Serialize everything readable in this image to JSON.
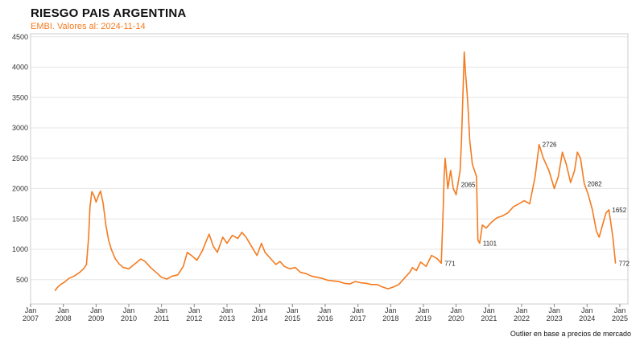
{
  "title": "RIESGO PAIS ARGENTINA",
  "subtitle": "EMBI. Valores al: 2024-11-14",
  "footnote": "Outlier en base a precios de mercado",
  "colors": {
    "line": "#f47b20",
    "subtitle": "#f47b20",
    "grid": "#e6e6e6",
    "axis": "#cccccc",
    "text": "#333333"
  },
  "chart_data": {
    "type": "line",
    "title": "RIESGO PAIS ARGENTINA",
    "subtitle": "EMBI. Valores al: 2024-11-14",
    "xlim": [
      "2007-01-01",
      "2025-04-01"
    ],
    "ylim": [
      100,
      4550
    ],
    "yticks": [
      500,
      1000,
      1500,
      2000,
      2500,
      3000,
      3500,
      4000,
      4500
    ],
    "xticks": [
      {
        "date": "2007-01-01",
        "label": [
          "Jan",
          "2007"
        ]
      },
      {
        "date": "2008-01-01",
        "label": [
          "Jan",
          "2008"
        ]
      },
      {
        "date": "2009-01-01",
        "label": [
          "Jan",
          "2009"
        ]
      },
      {
        "date": "2010-01-01",
        "label": [
          "Jan",
          "2010"
        ]
      },
      {
        "date": "2011-01-01",
        "label": [
          "Jan",
          "2011"
        ]
      },
      {
        "date": "2012-01-01",
        "label": [
          "Jan",
          "2012"
        ]
      },
      {
        "date": "2013-01-01",
        "label": [
          "Jan",
          "2013"
        ]
      },
      {
        "date": "2014-01-01",
        "label": [
          "Jan",
          "2014"
        ]
      },
      {
        "date": "2015-01-01",
        "label": [
          "Jan",
          "2015"
        ]
      },
      {
        "date": "2016-01-01",
        "label": [
          "Jan",
          "2016"
        ]
      },
      {
        "date": "2017-01-01",
        "label": [
          "Jan",
          "2017"
        ]
      },
      {
        "date": "2018-01-01",
        "label": [
          "Jan",
          "2018"
        ]
      },
      {
        "date": "2019-01-01",
        "label": [
          "Jan",
          "2019"
        ]
      },
      {
        "date": "2020-01-01",
        "label": [
          "Jan",
          "2020"
        ]
      },
      {
        "date": "2021-01-01",
        "label": [
          "Jan",
          "2021"
        ]
      },
      {
        "date": "2022-01-01",
        "label": [
          "Jan",
          "2022"
        ]
      },
      {
        "date": "2023-01-01",
        "label": [
          "Jan",
          "2023"
        ]
      },
      {
        "date": "2024-01-01",
        "label": [
          "Jan",
          "2024"
        ]
      },
      {
        "date": "2025-01-01",
        "label": [
          "Jan",
          "2025"
        ]
      }
    ],
    "grid": true,
    "legend": "none",
    "series": [
      {
        "points": [
          [
            "2007-10-01",
            320
          ],
          [
            "2007-11-01",
            380
          ],
          [
            "2007-12-01",
            420
          ],
          [
            "2008-01-15",
            460
          ],
          [
            "2008-03-01",
            520
          ],
          [
            "2008-05-01",
            560
          ],
          [
            "2008-07-01",
            620
          ],
          [
            "2008-08-15",
            680
          ],
          [
            "2008-09-15",
            750
          ],
          [
            "2008-10-10",
            1200
          ],
          [
            "2008-10-25",
            1700
          ],
          [
            "2008-11-15",
            1950
          ],
          [
            "2008-12-10",
            1880
          ],
          [
            "2009-01-01",
            1780
          ],
          [
            "2009-02-01",
            1900
          ],
          [
            "2009-02-20",
            1960
          ],
          [
            "2009-03-20",
            1760
          ],
          [
            "2009-04-20",
            1400
          ],
          [
            "2009-05-20",
            1150
          ],
          [
            "2009-06-20",
            1000
          ],
          [
            "2009-08-01",
            850
          ],
          [
            "2009-09-15",
            760
          ],
          [
            "2009-11-01",
            700
          ],
          [
            "2010-01-01",
            680
          ],
          [
            "2010-03-01",
            750
          ],
          [
            "2010-05-15",
            840
          ],
          [
            "2010-07-01",
            800
          ],
          [
            "2010-09-01",
            700
          ],
          [
            "2010-11-01",
            620
          ],
          [
            "2011-01-01",
            540
          ],
          [
            "2011-03-01",
            510
          ],
          [
            "2011-05-01",
            560
          ],
          [
            "2011-07-01",
            580
          ],
          [
            "2011-09-01",
            720
          ],
          [
            "2011-10-15",
            950
          ],
          [
            "2011-12-01",
            900
          ],
          [
            "2012-02-01",
            820
          ],
          [
            "2012-04-01",
            980
          ],
          [
            "2012-05-15",
            1140
          ],
          [
            "2012-06-15",
            1250
          ],
          [
            "2012-08-01",
            1050
          ],
          [
            "2012-09-15",
            950
          ],
          [
            "2012-11-15",
            1200
          ],
          [
            "2013-01-01",
            1100
          ],
          [
            "2013-03-01",
            1230
          ],
          [
            "2013-05-01",
            1180
          ],
          [
            "2013-06-15",
            1280
          ],
          [
            "2013-08-01",
            1200
          ],
          [
            "2013-10-01",
            1050
          ],
          [
            "2013-12-01",
            900
          ],
          [
            "2014-01-20",
            1100
          ],
          [
            "2014-03-01",
            950
          ],
          [
            "2014-05-01",
            850
          ],
          [
            "2014-07-01",
            750
          ],
          [
            "2014-08-15",
            800
          ],
          [
            "2014-10-01",
            720
          ],
          [
            "2014-12-01",
            680
          ],
          [
            "2015-02-01",
            700
          ],
          [
            "2015-04-01",
            620
          ],
          [
            "2015-06-01",
            600
          ],
          [
            "2015-08-01",
            560
          ],
          [
            "2015-10-01",
            540
          ],
          [
            "2015-12-01",
            520
          ],
          [
            "2016-02-01",
            490
          ],
          [
            "2016-04-01",
            480
          ],
          [
            "2016-06-01",
            470
          ],
          [
            "2016-08-01",
            440
          ],
          [
            "2016-10-01",
            430
          ],
          [
            "2016-12-01",
            470
          ],
          [
            "2017-02-01",
            450
          ],
          [
            "2017-04-01",
            440
          ],
          [
            "2017-06-01",
            420
          ],
          [
            "2017-08-01",
            420
          ],
          [
            "2017-10-01",
            380
          ],
          [
            "2017-12-01",
            350
          ],
          [
            "2018-02-01",
            380
          ],
          [
            "2018-04-01",
            420
          ],
          [
            "2018-06-01",
            520
          ],
          [
            "2018-08-01",
            620
          ],
          [
            "2018-09-01",
            700
          ],
          [
            "2018-10-15",
            650
          ],
          [
            "2018-12-01",
            790
          ],
          [
            "2019-02-01",
            720
          ],
          [
            "2019-04-01",
            900
          ],
          [
            "2019-06-01",
            850
          ],
          [
            "2019-07-20",
            771
          ],
          [
            "2019-08-13",
            1800
          ],
          [
            "2019-08-20",
            2200
          ],
          [
            "2019-09-01",
            2500
          ],
          [
            "2019-10-01",
            2000
          ],
          [
            "2019-11-01",
            2300
          ],
          [
            "2019-12-01",
            2000
          ],
          [
            "2020-01-01",
            1900
          ],
          [
            "2020-01-20",
            2065
          ],
          [
            "2020-02-15",
            2300
          ],
          [
            "2020-03-01",
            2800
          ],
          [
            "2020-03-20",
            3700
          ],
          [
            "2020-04-01",
            4250
          ],
          [
            "2020-04-15",
            3900
          ],
          [
            "2020-05-01",
            3600
          ],
          [
            "2020-05-15",
            3300
          ],
          [
            "2020-06-01",
            2800
          ],
          [
            "2020-07-01",
            2400
          ],
          [
            "2020-08-15",
            2200
          ],
          [
            "2020-09-01",
            1150
          ],
          [
            "2020-09-20",
            1101
          ],
          [
            "2020-10-20",
            1400
          ],
          [
            "2020-12-01",
            1350
          ],
          [
            "2021-02-01",
            1450
          ],
          [
            "2021-04-01",
            1520
          ],
          [
            "2021-06-01",
            1550
          ],
          [
            "2021-08-01",
            1600
          ],
          [
            "2021-10-01",
            1700
          ],
          [
            "2021-12-01",
            1750
          ],
          [
            "2022-02-01",
            1800
          ],
          [
            "2022-04-01",
            1750
          ],
          [
            "2022-06-01",
            2200
          ],
          [
            "2022-07-15",
            2726
          ],
          [
            "2022-09-01",
            2500
          ],
          [
            "2022-11-01",
            2300
          ],
          [
            "2023-01-01",
            2000
          ],
          [
            "2023-02-15",
            2200
          ],
          [
            "2023-04-01",
            2600
          ],
          [
            "2023-05-15",
            2400
          ],
          [
            "2023-07-01",
            2100
          ],
          [
            "2023-08-15",
            2300
          ],
          [
            "2023-09-15",
            2600
          ],
          [
            "2023-10-20",
            2500
          ],
          [
            "2023-12-01",
            2082
          ],
          [
            "2024-01-15",
            1900
          ],
          [
            "2024-03-01",
            1650
          ],
          [
            "2024-04-15",
            1300
          ],
          [
            "2024-05-15",
            1200
          ],
          [
            "2024-07-01",
            1450
          ],
          [
            "2024-08-01",
            1600
          ],
          [
            "2024-09-01",
            1652
          ],
          [
            "2024-10-15",
            1200
          ],
          [
            "2024-11-14",
            772
          ]
        ]
      }
    ],
    "annotations": [
      {
        "date": "2019-07-20",
        "value": 771,
        "text": "771"
      },
      {
        "date": "2020-01-20",
        "value": 2065,
        "text": "2065"
      },
      {
        "date": "2020-09-20",
        "value": 1101,
        "text": "1101"
      },
      {
        "date": "2022-07-15",
        "value": 2726,
        "text": "2726"
      },
      {
        "date": "2023-12-01",
        "value": 2082,
        "text": "2082"
      },
      {
        "date": "2024-09-01",
        "value": 1652,
        "text": "1652"
      },
      {
        "date": "2024-11-14",
        "value": 772,
        "text": "772"
      }
    ]
  }
}
